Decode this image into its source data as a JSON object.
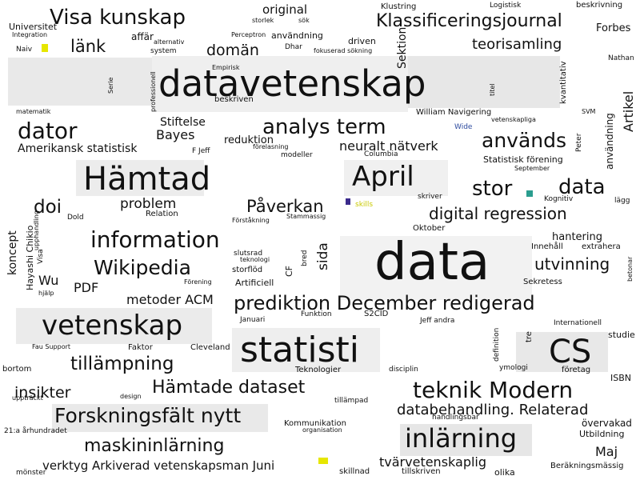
{
  "colors": {
    "background": "#ffffff",
    "text": "#111111",
    "box": "#e6e6e6",
    "accent_yellow": "#e6e600",
    "accent_teal": "#2a9d8f",
    "accent_purple": "#3b2b8c",
    "accent_blue": "#2c4a9e"
  },
  "cloud": {
    "words": [
      "Visa kunskap",
      "original",
      "Klustring",
      "Logistisk",
      "beskrivning",
      "Universitet",
      "storlek",
      "sök",
      "Klassificeringsjournal",
      "Forbes",
      "Integration",
      "affär",
      "Perceptron",
      "användning",
      "driven",
      "alternativ",
      "länk",
      "domän",
      "Sektion",
      "teorisamling",
      "system",
      "Dhar",
      "fokuserad sökning",
      "Naiv",
      "Nathan",
      "Empirisk",
      "kvantitativ",
      "datavetenskap",
      "Serie",
      "professionell",
      "titel",
      "matematik",
      "beskriven",
      "Artikel",
      "SVM",
      "William Navigering",
      "vetenskapliga",
      "dator",
      "Stiftelse",
      "analys term",
      "Wide",
      "Bayes",
      "reduktion",
      "neuralt nätverk",
      "används",
      "Peter",
      "Amerikansk statistisk",
      "förelasning",
      "modeller",
      "F Jeff",
      "Columbia",
      "Statistisk förening",
      "användning",
      "September",
      "Hämtad",
      "April",
      "data",
      "stor",
      "problem",
      "Kognitiv",
      "skriver",
      "lägg",
      "doi",
      "Påverkan",
      "Dold",
      "Relation",
      "skills",
      "digital regression",
      "koncept",
      "Stammassig",
      "Förståkning",
      "Oktober",
      "information",
      "Hayashi Chikio",
      "Wikipedia",
      "hantering",
      "Innehåll",
      "extrahera",
      "upphandling",
      "slutsrad",
      "teknologi",
      "sida",
      "bred",
      "data",
      "utvinning",
      "storflöd",
      "Wu",
      "CF",
      "betonar",
      "Visa",
      "PDF",
      "Förening",
      "Artificiell",
      "Sekretess",
      "hjälp",
      "metoder ACM",
      "prediktion December redigerad",
      "Funktion",
      "S2CID",
      "Januari",
      "Jeff andra",
      "vetenskap",
      "Internationell",
      "studie",
      "definition",
      "statisti",
      "tre",
      "CS",
      "Fau Support",
      "Faktor",
      "Cleveland",
      "tillämpning",
      "disciplin",
      "Teknologier",
      "ymologi",
      "företag",
      "bortom",
      "ISBN",
      "insikter",
      "Hämtade dataset",
      "teknik Modern",
      "uppträckt",
      "design",
      "tillämpad",
      "databehandling. Relaterad",
      "handlingsbar",
      "Forskningsfält nytt",
      "Kommunikation",
      "organisation",
      "övervakad",
      "21:a århundradet",
      "inlärning",
      "Utbildning",
      "maskininlärning",
      "Maj",
      "verktyg Arkiverad vetenskapsman Juni",
      "tvärvetenskaplig",
      "Beräkningsmässig",
      "skillnad",
      "tillskriven",
      "olika",
      "mönster"
    ]
  }
}
